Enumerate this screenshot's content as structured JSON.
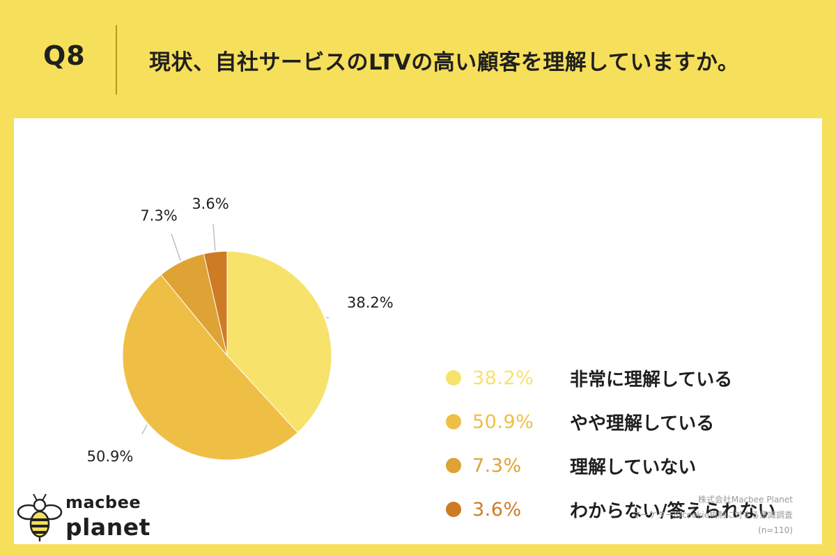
{
  "header": {
    "question_number": "Q8",
    "question_text": "現状、自社サービスのLTVの高い顧客を理解していますか。"
  },
  "chart_data": {
    "type": "pie",
    "title": "",
    "slices": [
      {
        "label": "非常に理解している",
        "value": 38.2,
        "value_label": "38.2%",
        "color": "#f7e26b"
      },
      {
        "label": "やや理解している",
        "value": 50.9,
        "value_label": "50.9%",
        "color": "#efbf45"
      },
      {
        "label": "理解していない",
        "value": 7.3,
        "value_label": "7.3%",
        "color": "#dfa234"
      },
      {
        "label": "わからない/答えられない",
        "value": 3.6,
        "value_label": "3.6%",
        "color": "#cd7b25"
      }
    ],
    "legend_position": "right",
    "start_angle_deg": 0,
    "direction": "clockwise"
  },
  "logo": {
    "line1": "macbee",
    "line2": "planet"
  },
  "credits": {
    "company": "株式会社Macbee Planet",
    "survey": "マーケターのcookie規制に対する意識調査",
    "sample": "(n=110)"
  }
}
